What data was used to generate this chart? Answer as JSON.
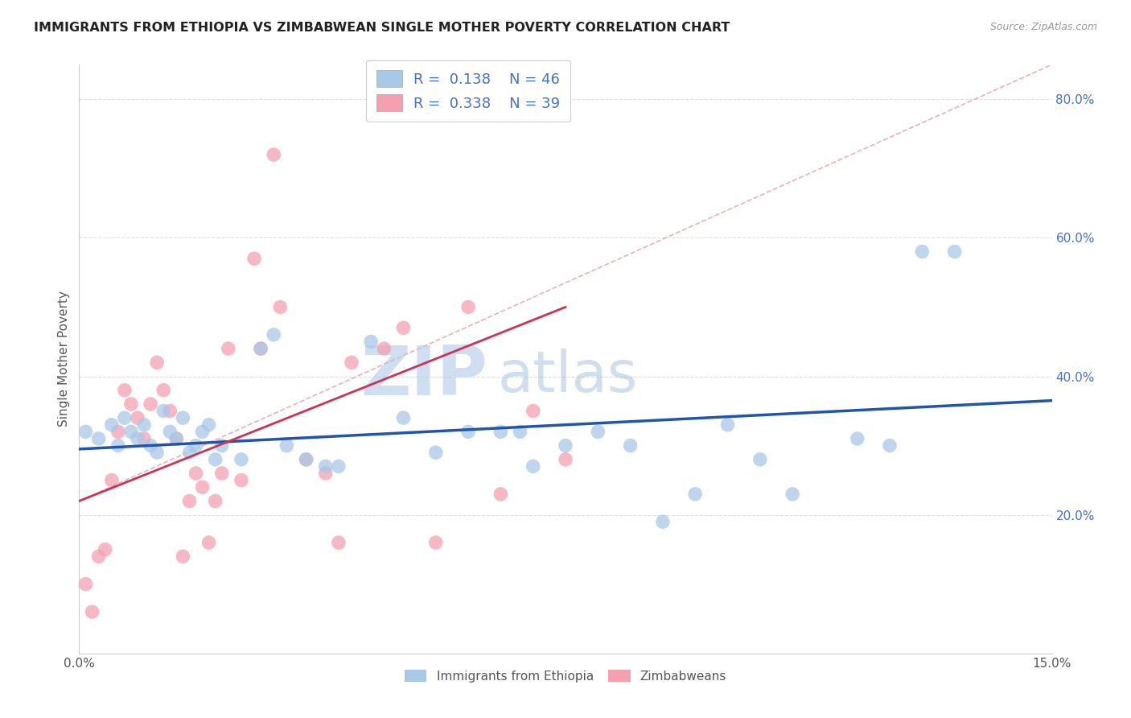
{
  "title": "IMMIGRANTS FROM ETHIOPIA VS ZIMBABWEAN SINGLE MOTHER POVERTY CORRELATION CHART",
  "source": "Source: ZipAtlas.com",
  "ylabel": "Single Mother Poverty",
  "xlim": [
    0.0,
    0.15
  ],
  "ylim": [
    0.0,
    0.85
  ],
  "xtick_pos": [
    0.0,
    0.15
  ],
  "xticklabels": [
    "0.0%",
    "15.0%"
  ],
  "yticks_right": [
    0.2,
    0.4,
    0.6,
    0.8
  ],
  "ytick_right_labels": [
    "20.0%",
    "40.0%",
    "60.0%",
    "80.0%"
  ],
  "legend1_R": "0.138",
  "legend1_N": "46",
  "legend2_R": "0.338",
  "legend2_N": "39",
  "blue_color": "#a8c8e8",
  "pink_color": "#f4a0b0",
  "blue_line_color": "#2255aa",
  "pink_line_color": "#cc3355",
  "diag_color": "#e8b0b8",
  "watermark_zip": "#c8d8f0",
  "watermark_atlas": "#a0b8d8",
  "blue_scatter_x": [
    0.001,
    0.003,
    0.005,
    0.006,
    0.007,
    0.008,
    0.009,
    0.01,
    0.011,
    0.012,
    0.013,
    0.014,
    0.015,
    0.016,
    0.017,
    0.018,
    0.019,
    0.02,
    0.021,
    0.022,
    0.025,
    0.028,
    0.03,
    0.032,
    0.035,
    0.038,
    0.04,
    0.045,
    0.05,
    0.055,
    0.06,
    0.065,
    0.068,
    0.07,
    0.075,
    0.08,
    0.085,
    0.09,
    0.095,
    0.1,
    0.105,
    0.11,
    0.12,
    0.125,
    0.13,
    0.135
  ],
  "blue_scatter_y": [
    0.32,
    0.31,
    0.33,
    0.3,
    0.34,
    0.32,
    0.31,
    0.33,
    0.3,
    0.29,
    0.35,
    0.32,
    0.31,
    0.34,
    0.29,
    0.3,
    0.32,
    0.33,
    0.28,
    0.3,
    0.28,
    0.44,
    0.46,
    0.3,
    0.28,
    0.27,
    0.27,
    0.45,
    0.34,
    0.29,
    0.32,
    0.32,
    0.32,
    0.27,
    0.3,
    0.32,
    0.3,
    0.19,
    0.23,
    0.33,
    0.28,
    0.23,
    0.31,
    0.3,
    0.58,
    0.58
  ],
  "pink_scatter_x": [
    0.001,
    0.002,
    0.003,
    0.004,
    0.005,
    0.006,
    0.007,
    0.008,
    0.009,
    0.01,
    0.011,
    0.012,
    0.013,
    0.014,
    0.015,
    0.016,
    0.017,
    0.018,
    0.019,
    0.02,
    0.021,
    0.022,
    0.023,
    0.025,
    0.027,
    0.028,
    0.03,
    0.031,
    0.035,
    0.038,
    0.04,
    0.042,
    0.047,
    0.05,
    0.055,
    0.06,
    0.065,
    0.07,
    0.075
  ],
  "pink_scatter_y": [
    0.1,
    0.06,
    0.14,
    0.15,
    0.25,
    0.32,
    0.38,
    0.36,
    0.34,
    0.31,
    0.36,
    0.42,
    0.38,
    0.35,
    0.31,
    0.14,
    0.22,
    0.26,
    0.24,
    0.16,
    0.22,
    0.26,
    0.44,
    0.25,
    0.57,
    0.44,
    0.72,
    0.5,
    0.28,
    0.26,
    0.16,
    0.42,
    0.44,
    0.47,
    0.16,
    0.5,
    0.23,
    0.35,
    0.28
  ],
  "blue_line_x0": 0.0,
  "blue_line_y0": 0.295,
  "blue_line_x1": 0.15,
  "blue_line_y1": 0.365,
  "pink_line_x0": 0.0,
  "pink_line_y0": 0.22,
  "pink_line_x1": 0.075,
  "pink_line_y1": 0.5
}
